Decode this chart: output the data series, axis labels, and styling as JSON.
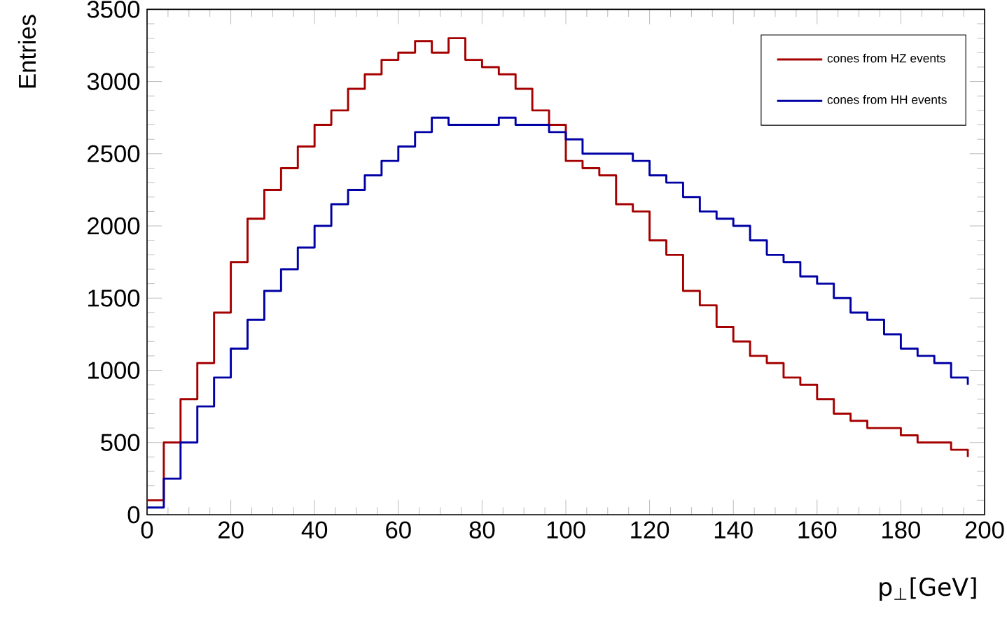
{
  "chart_data": {
    "type": "step",
    "xlabel": "p$_{⊥}$[GeV]",
    "ylabel": "Entries",
    "xlim": [
      0,
      200
    ],
    "xticks": [
      0,
      20,
      40,
      60,
      80,
      100,
      120,
      140,
      160,
      180,
      200
    ],
    "ylim": [
      0,
      3500
    ],
    "yticks": [
      0,
      500,
      1000,
      1500,
      2000,
      2500,
      3000,
      3500
    ],
    "grid": false,
    "legend": "top right",
    "series": [
      {
        "name": "cones from HZ events",
        "color": "#a50000",
        "x": [
          0,
          4,
          8,
          12,
          16,
          20,
          24,
          28,
          32,
          36,
          40,
          44,
          48,
          52,
          56,
          60,
          64,
          68,
          72,
          76,
          80,
          84,
          88,
          92,
          96,
          100,
          104,
          108,
          112,
          116,
          120,
          124,
          128,
          132,
          136,
          140,
          144,
          148,
          152,
          156,
          160,
          164,
          168,
          172,
          176,
          180,
          184,
          188,
          192,
          196
        ],
        "values": [
          100,
          500,
          800,
          1050,
          1400,
          1750,
          2050,
          2250,
          2400,
          2550,
          2700,
          2800,
          2950,
          3050,
          3150,
          3200,
          3280,
          3200,
          3300,
          3150,
          3100,
          3050,
          2950,
          2800,
          2700,
          2450,
          2400,
          2350,
          2150,
          2100,
          1900,
          1800,
          1550,
          1450,
          1300,
          1200,
          1100,
          1050,
          950,
          900,
          800,
          700,
          650,
          600,
          600,
          550,
          500,
          500,
          450,
          400
        ]
      },
      {
        "name": "cones from HH events",
        "color": "#0000a5",
        "x": [
          0,
          4,
          8,
          12,
          16,
          20,
          24,
          28,
          32,
          36,
          40,
          44,
          48,
          52,
          56,
          60,
          64,
          68,
          72,
          76,
          80,
          84,
          88,
          92,
          96,
          100,
          104,
          108,
          112,
          116,
          120,
          124,
          128,
          132,
          136,
          140,
          144,
          148,
          152,
          156,
          160,
          164,
          168,
          172,
          176,
          180,
          184,
          188,
          192,
          196
        ],
        "values": [
          50,
          250,
          500,
          750,
          950,
          1150,
          1350,
          1550,
          1700,
          1850,
          2000,
          2150,
          2250,
          2350,
          2450,
          2550,
          2650,
          2750,
          2700,
          2700,
          2700,
          2750,
          2700,
          2700,
          2650,
          2600,
          2500,
          2500,
          2500,
          2450,
          2350,
          2300,
          2200,
          2100,
          2050,
          2000,
          1900,
          1800,
          1750,
          1650,
          1600,
          1500,
          1400,
          1350,
          1250,
          1150,
          1100,
          1050,
          950,
          900
        ]
      }
    ]
  }
}
